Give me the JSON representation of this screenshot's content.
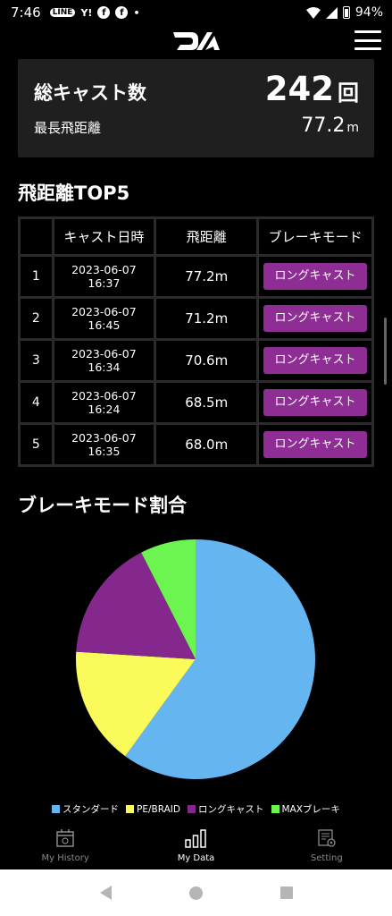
{
  "status_bar": {
    "time": "7:46",
    "icons": [
      "LINE",
      "Y!",
      "f",
      "f",
      "•"
    ],
    "battery": "94%"
  },
  "summary": {
    "total_label": "総キャスト数",
    "total_value": "242",
    "total_unit": "回",
    "max_label": "最長飛距離",
    "max_value": "77.2",
    "max_unit": "m"
  },
  "top5": {
    "title": "飛距離TOP5",
    "headers": [
      "",
      "キャスト日時",
      "飛距離",
      "ブレーキモード"
    ],
    "rows": [
      {
        "no": "1",
        "date": "2023-06-07 16:37",
        "distance": "77.2m",
        "mode": "ロングキャスト"
      },
      {
        "no": "2",
        "date": "2023-06-07 16:45",
        "distance": "71.2m",
        "mode": "ロングキャスト"
      },
      {
        "no": "3",
        "date": "2023-06-07 16:34",
        "distance": "70.6m",
        "mode": "ロングキャスト"
      },
      {
        "no": "4",
        "date": "2023-06-07 16:24",
        "distance": "68.5m",
        "mode": "ロングキャスト"
      },
      {
        "no": "5",
        "date": "2023-06-07 16:35",
        "distance": "68.0m",
        "mode": "ロングキャスト"
      }
    ]
  },
  "brake_ratio": {
    "title": "ブレーキモード割合",
    "legend": [
      {
        "label": "スタンダード",
        "color": "#64b5f0"
      },
      {
        "label": "PE/BRAID",
        "color": "#fafa5a"
      },
      {
        "label": "ロングキャスト",
        "color": "#85288d"
      },
      {
        "label": "MAXブレーキ",
        "color": "#6cf550"
      }
    ]
  },
  "chart_data": {
    "type": "pie",
    "labels": [
      "スタンダード",
      "PE/BRAID",
      "ロングキャスト",
      "MAXブレーキ"
    ],
    "values": [
      60,
      16,
      16.5,
      7.5
    ],
    "colors": [
      "#64b5f0",
      "#fafa5a",
      "#85288d",
      "#6cf550"
    ],
    "title": "ブレーキモード割合",
    "legend_position": "bottom"
  },
  "bottom_nav": [
    {
      "label": "My History",
      "icon": "calendar-icon",
      "active": false
    },
    {
      "label": "My Data",
      "icon": "bar-chart-icon",
      "active": true
    },
    {
      "label": "Setting",
      "icon": "settings-icon",
      "active": false
    }
  ]
}
